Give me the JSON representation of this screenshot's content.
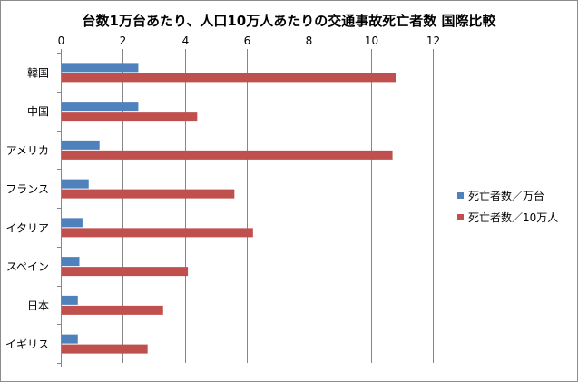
{
  "chart_data": {
    "type": "bar",
    "orientation": "horizontal",
    "title": "台数1万台あたり、人口10万人あたりの交通事故死亡者数 国際比較",
    "categories": [
      "韓国",
      "中国",
      "アメリカ",
      "フランス",
      "イタリア",
      "スペイン",
      "日本",
      "イギリス"
    ],
    "series": [
      {
        "name": "死亡者数／万台",
        "color": "#4f81bd",
        "values": [
          2.5,
          2.5,
          1.25,
          0.9,
          0.7,
          0.6,
          0.55,
          0.55
        ]
      },
      {
        "name": "死亡者数／10万人",
        "color": "#c0504d",
        "values": [
          10.8,
          4.4,
          10.7,
          5.6,
          6.2,
          4.1,
          3.3,
          2.8
        ]
      }
    ],
    "xlim": [
      0,
      12
    ],
    "x_ticks": [
      "0",
      "2",
      "4",
      "6",
      "8",
      "10",
      "12"
    ],
    "grid": true,
    "legend_position": "right"
  }
}
